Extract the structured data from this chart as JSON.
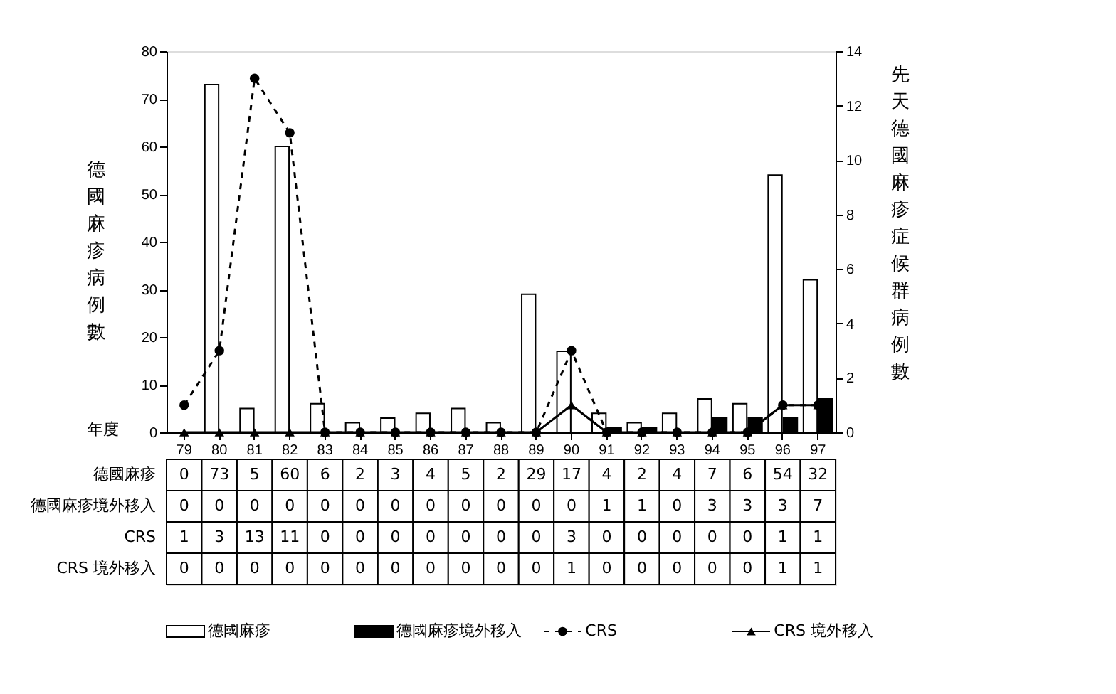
{
  "chart_data": {
    "type": "bar",
    "xlabel": "年度",
    "ylabel": "德國麻疹病例數",
    "y2label": "先天德國麻疹症候群病例數",
    "categories": [
      "79",
      "80",
      "81",
      "82",
      "83",
      "84",
      "85",
      "86",
      "87",
      "88",
      "89",
      "90",
      "91",
      "92",
      "93",
      "94",
      "95",
      "96",
      "97"
    ],
    "series": [
      {
        "name": "德國麻疹",
        "color": "#ffffff",
        "values": [
          0,
          73,
          5,
          60,
          6,
          2,
          3,
          4,
          5,
          2,
          29,
          17,
          4,
          2,
          4,
          7,
          6,
          54,
          32
        ]
      },
      {
        "name": "德國麻疹境外移入",
        "color": "#000000",
        "values": [
          0,
          0,
          0,
          0,
          0,
          0,
          0,
          0,
          0,
          0,
          0,
          0,
          1,
          1,
          0,
          3,
          3,
          3,
          7
        ]
      },
      {
        "name": "CRS",
        "type": "line",
        "axis": "y2",
        "color": "#000000",
        "line_style": "dashed",
        "marker": "circle",
        "values": [
          1,
          3,
          13,
          11,
          0,
          0,
          0,
          0,
          0,
          0,
          0,
          3,
          0,
          0,
          0,
          0,
          0,
          1,
          1
        ]
      },
      {
        "name": "CRS 境外移入",
        "type": "line",
        "axis": "y2",
        "color": "#000000",
        "line_style": "solid",
        "marker": "triangle",
        "values": [
          0,
          0,
          0,
          0,
          0,
          0,
          0,
          0,
          0,
          0,
          0,
          1,
          0,
          0,
          0,
          0,
          0,
          1,
          1
        ]
      }
    ],
    "ylim": [
      0,
      80
    ],
    "yticks": [
      0,
      10,
      20,
      30,
      40,
      50,
      60,
      70,
      80
    ],
    "y2lim": [
      0,
      14
    ],
    "y2ticks": [
      0,
      2,
      4,
      6,
      8,
      10,
      12,
      14
    ],
    "data_labels": true,
    "legend": "bottom",
    "grid": false
  }
}
